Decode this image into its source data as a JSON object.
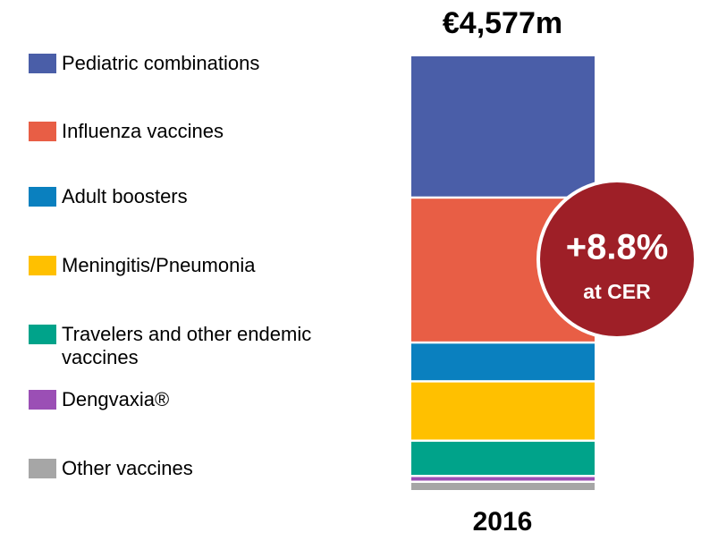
{
  "chart_data": {
    "type": "stacked_bar",
    "total_label": "€4,577m",
    "categories": [
      "2016"
    ],
    "series": [
      {
        "name": "Pediatric combinations",
        "color": "#4a5ea8",
        "values": [
          1526
        ]
      },
      {
        "name": "Influenza vaccines",
        "color": "#e85e45",
        "values": [
          1555
        ]
      },
      {
        "name": "Adult boosters",
        "color": "#0a80bf",
        "values": [
          398
        ]
      },
      {
        "name": "Meningitis/Pneumonia",
        "color": "#ffc000",
        "values": [
          622
        ]
      },
      {
        "name": "Travelers and other endemic vaccines",
        "color": "#00a38a",
        "values": [
          360
        ]
      },
      {
        "name": "Dengvaxia®",
        "color": "#9b4fb5",
        "values": [
          39
        ]
      },
      {
        "name": "Other vaccines",
        "color": "#a6a6a6",
        "values": [
          78
        ]
      }
    ],
    "badge": {
      "value": "+8.8%",
      "label": "at CER"
    },
    "legend": "left"
  }
}
